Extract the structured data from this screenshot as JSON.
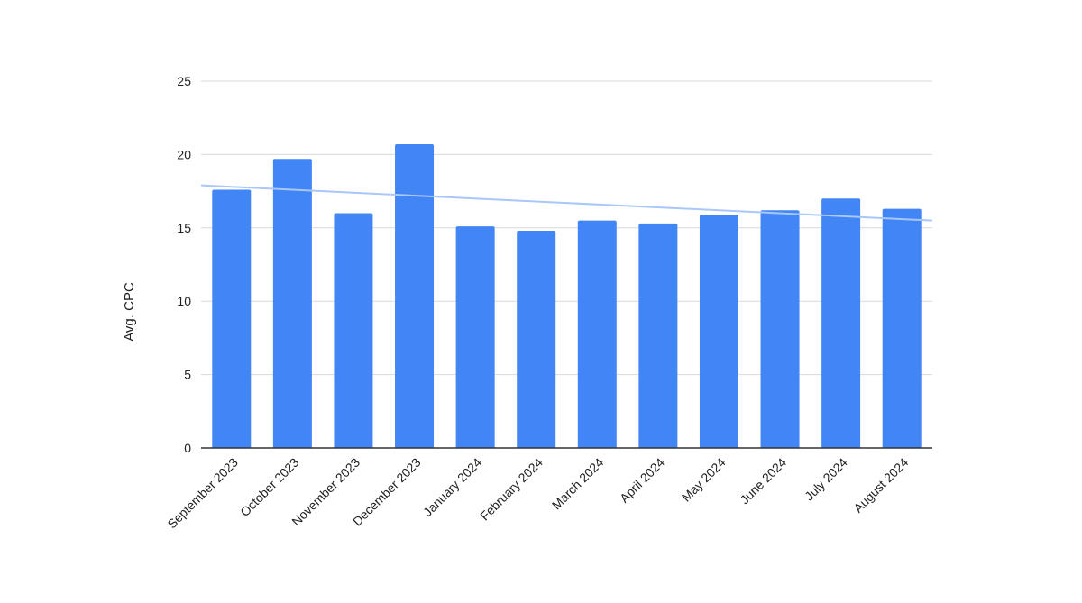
{
  "chart_data": {
    "type": "bar",
    "title": "",
    "xlabel": "",
    "ylabel": "Avg. CPC",
    "ylim": [
      0,
      25
    ],
    "yticks": [
      0,
      5,
      10,
      15,
      20,
      25
    ],
    "grid": true,
    "legend": "none",
    "categories": [
      "September 2023",
      "October 2023",
      "November 2023",
      "December 2023",
      "January 2024",
      "February 2024",
      "March 2024",
      "April 2024",
      "May 2024",
      "June 2024",
      "July 2024",
      "August 2024"
    ],
    "values": [
      17.6,
      19.7,
      16.0,
      20.7,
      15.1,
      14.8,
      15.5,
      15.3,
      15.9,
      16.2,
      17.0,
      16.3
    ],
    "trendline": {
      "type": "linear",
      "start_value": 17.9,
      "end_value": 15.5
    },
    "colors": {
      "bar": "#4285f4",
      "trendline": "#a8c7fa",
      "grid": "#d9d9d9",
      "baseline": "#333333"
    }
  }
}
